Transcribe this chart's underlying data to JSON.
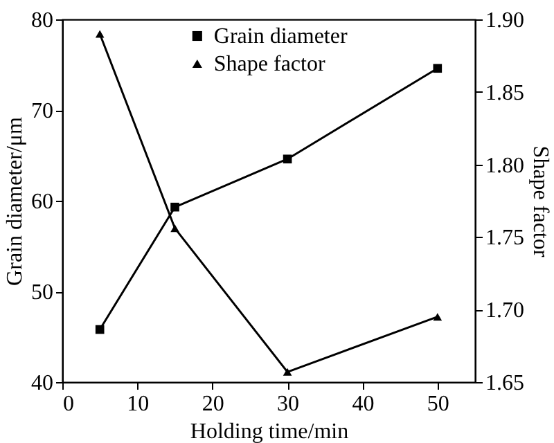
{
  "chart_data": {
    "type": "line",
    "xlabel": "Holding time/min",
    "ylabel": "Grain diameter/μm",
    "y2label": "Shape factor",
    "x": [
      5,
      15,
      30,
      50
    ],
    "series": [
      {
        "name": "Grain diameter",
        "color": "#000000",
        "marker": "square",
        "values": [
          45.8,
          59.3,
          64.6,
          74.6
        ]
      },
      {
        "name": "Shape factor",
        "color": "#000000",
        "marker": "triangle",
        "axis": "y2",
        "values": [
          1.89,
          1.756,
          1.657,
          1.695
        ]
      }
    ],
    "xlim": [
      0,
      55
    ],
    "xticks": [
      0,
      10,
      20,
      30,
      40,
      50
    ],
    "ylim": [
      40,
      80
    ],
    "yticks": [
      40,
      50,
      60,
      70,
      80
    ],
    "y2lim": [
      1.65,
      1.9
    ],
    "y2ticks": [
      {
        "value": 1.65,
        "label": "1.65"
      },
      {
        "value": 1.7,
        "label": "1.70"
      },
      {
        "value": 1.75,
        "label": "1.75"
      },
      {
        "value": 1.8,
        "label": "1.80"
      },
      {
        "value": 1.85,
        "label": "1.85"
      },
      {
        "value": 1.9,
        "label": "1.90"
      }
    ],
    "grid": false,
    "legend": "top",
    "line_style": "solid"
  }
}
